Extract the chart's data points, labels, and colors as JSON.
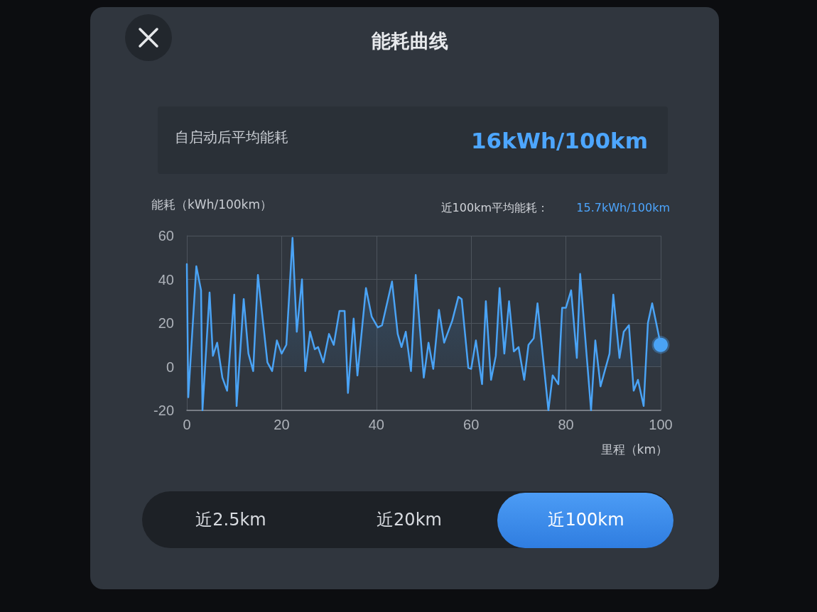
{
  "chart_data": {
    "type": "area",
    "title": "能耗曲线",
    "ylabel": "能耗（kWh/100km）",
    "xlabel": "里程（km）",
    "annotations": [
      "自启动后平均能耗",
      "16kWh/100km",
      "近100km平均能耗：",
      "15.7kWh/100km",
      "近2.5km",
      "近20km",
      "近100km"
    ],
    "series": [
      {
        "color": "#4aa3f5",
        "x": [
          0,
          0.3,
          2,
          3,
          3.3,
          4.8,
          5.5,
          6.4,
          7.5,
          8.5,
          10,
          10.5,
          12,
          13,
          14,
          15,
          17,
          18,
          19,
          20,
          21,
          22.3,
          23.2,
          24.3,
          25,
          26,
          27,
          27.7,
          28.8,
          30,
          31,
          32.2,
          33.3,
          34,
          35.2,
          36,
          37.8,
          39,
          40.3,
          41.2,
          43.3,
          44.5,
          45.3,
          46.2,
          47.3,
          48.3,
          50,
          51,
          52,
          53.2,
          54.3,
          56,
          57.3,
          58,
          59.4,
          60,
          61,
          62.3,
          63.1,
          64.2,
          65.2,
          66,
          67,
          68,
          69,
          70,
          71.2,
          72.1,
          73.2,
          74,
          76.3,
          77.2,
          78.4,
          79.2,
          80,
          81.1,
          82.3,
          83,
          85.3,
          86.2,
          87.3,
          89.2,
          90,
          91.3,
          92.2,
          93.3,
          94.3,
          95.2,
          96.4,
          97.3,
          98.2,
          100
        ],
        "values": [
          47,
          -14,
          46,
          35,
          -20,
          34,
          5,
          11,
          -5,
          -11,
          33,
          -18,
          31,
          6,
          -2,
          42,
          2,
          -2,
          12,
          6,
          10,
          59,
          16,
          40,
          -2,
          16,
          8,
          9,
          2,
          15,
          10,
          25.5,
          25.5,
          -12,
          22,
          -4,
          36,
          23,
          18,
          19,
          39,
          15,
          9,
          16,
          -2,
          42,
          -5,
          11,
          -1,
          26,
          11,
          21,
          32,
          31,
          -0.5,
          -1,
          12,
          -8,
          30,
          -6,
          5,
          36,
          6,
          30,
          7,
          9,
          -6,
          10,
          13,
          29,
          -20,
          -4,
          -8,
          27,
          27,
          35,
          4,
          42.5,
          -20,
          12,
          -9,
          6,
          33,
          4,
          16,
          19,
          -11,
          -6,
          -18,
          20,
          29,
          10
        ]
      }
    ],
    "xlim": [
      0,
      100
    ],
    "xticks": [
      0,
      20,
      40,
      60,
      80,
      100
    ],
    "ylim": [
      -20,
      60
    ],
    "yticks": [
      -20,
      0,
      20,
      40,
      60
    ],
    "grid": true,
    "marker": "none",
    "line_style": "solid"
  }
}
